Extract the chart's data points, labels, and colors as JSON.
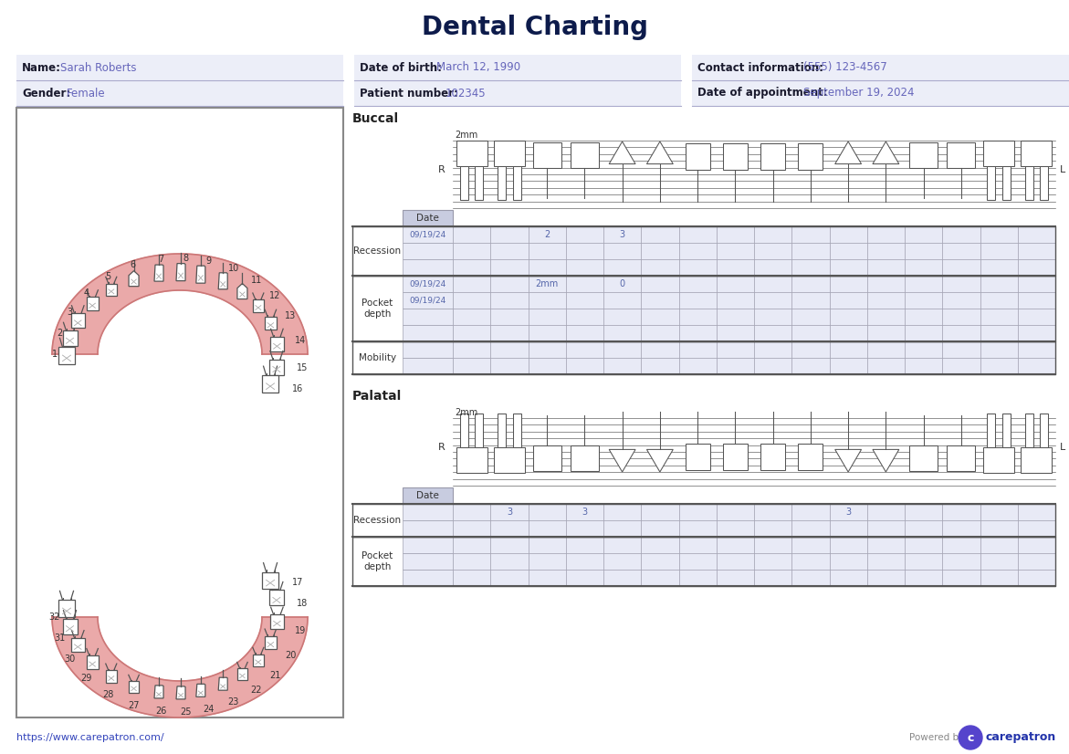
{
  "title": "Dental Charting",
  "patient_info": {
    "name_label": "Name:",
    "name_value": "Sarah Roberts",
    "dob_label": "Date of birth:",
    "dob_value": "March 12, 1990",
    "contact_label": "Contact information:",
    "contact_value": "(555) 123-4567",
    "gender_label": "Gender:",
    "gender_value": "Female",
    "patient_num_label": "Patient number:",
    "patient_num_value": "102345",
    "appt_label": "Date of appointment:",
    "appt_value": "September 19, 2024"
  },
  "buccal_recession_rows": [
    {
      "date": "09/19/24",
      "values": [
        "",
        "",
        "2",
        "",
        "3",
        "",
        "",
        "",
        "",
        "",
        "",
        "",
        "",
        "",
        "",
        ""
      ]
    },
    {
      "date": "",
      "values": [
        "",
        "",
        "",
        "",
        "",
        "",
        "",
        "",
        "",
        "",
        "",
        "",
        "",
        "",
        "",
        ""
      ]
    },
    {
      "date": "",
      "values": [
        "",
        "",
        "",
        "",
        "",
        "",
        "",
        "",
        "",
        "",
        "",
        "",
        "",
        "",
        "",
        ""
      ]
    }
  ],
  "buccal_pocket_rows": [
    {
      "date": "09/19/24",
      "values": [
        "",
        "",
        "2mm",
        "",
        "0",
        "",
        "",
        "",
        "",
        "",
        "",
        "",
        "",
        "",
        "",
        ""
      ]
    },
    {
      "date": "09/19/24",
      "values": [
        "",
        "",
        "",
        "",
        "",
        "",
        "",
        "",
        "",
        "",
        "",
        "",
        "",
        "",
        "",
        ""
      ]
    },
    {
      "date": "",
      "values": [
        "",
        "",
        "",
        "",
        "",
        "",
        "",
        "",
        "",
        "",
        "",
        "",
        "",
        "",
        "",
        ""
      ]
    },
    {
      "date": "",
      "values": [
        "",
        "",
        "",
        "",
        "",
        "",
        "",
        "",
        "",
        "",
        "",
        "",
        "",
        "",
        "",
        ""
      ]
    }
  ],
  "buccal_mobility_rows": [
    {
      "date": "",
      "values": [
        "",
        "",
        "",
        "",
        "",
        "",
        "",
        "",
        "",
        "",
        "",
        "",
        "",
        "",
        "",
        ""
      ]
    },
    {
      "date": "",
      "values": [
        "",
        "",
        "",
        "",
        "",
        "",
        "",
        "",
        "",
        "",
        "",
        "",
        "",
        "",
        "",
        ""
      ]
    }
  ],
  "palatal_recession_rows": [
    {
      "date": "",
      "values": [
        "",
        "3",
        "",
        "3",
        "",
        "",
        "",
        "",
        "",
        "",
        "3",
        "",
        "",
        "",
        "",
        ""
      ]
    },
    {
      "date": "",
      "values": [
        "",
        "",
        "",
        "",
        "",
        "",
        "",
        "",
        "",
        "",
        "",
        "",
        "",
        "",
        "",
        ""
      ]
    }
  ],
  "palatal_pocket_rows": [
    {
      "date": "",
      "values": [
        "",
        "",
        "",
        "",
        "",
        "",
        "",
        "",
        "",
        "",
        "",
        "",
        "",
        "",
        "",
        ""
      ]
    },
    {
      "date": "",
      "values": [
        "",
        "",
        "",
        "",
        "",
        "",
        "",
        "",
        "",
        "",
        "",
        "",
        "",
        "",
        "",
        ""
      ]
    },
    {
      "date": "",
      "values": [
        "",
        "",
        "",
        "",
        "",
        "",
        "",
        "",
        "",
        "",
        "",
        "",
        "",
        "",
        "",
        ""
      ]
    }
  ],
  "colors": {
    "background": "#ffffff",
    "title_color": "#0d1b4b",
    "info_bg": "#eceef8",
    "label_bold": "#1a1a2e",
    "label_value": "#6666bb",
    "info_underline": "#aaaacc",
    "table_header_bg": "#c8cce0",
    "table_cell_bg": "#e8eaf6",
    "table_text": "#5566aa",
    "table_border": "#9999aa",
    "section_border": "#555555",
    "gum_fill": "#e8a0a0",
    "gum_stroke": "#cc7777",
    "tooth_fill": "#ffffff",
    "tooth_stroke": "#555555",
    "xmark": "#aaaaaa",
    "link_color": "#3344bb",
    "powered_by": "#888888",
    "logo_circle": "#5544cc",
    "logo_text": "#2233aa",
    "diagram_border": "#888888",
    "line_color": "#444444",
    "rl_color": "#333333"
  },
  "num_tooth_cols": 16,
  "url": "https://www.carepatron.com/"
}
